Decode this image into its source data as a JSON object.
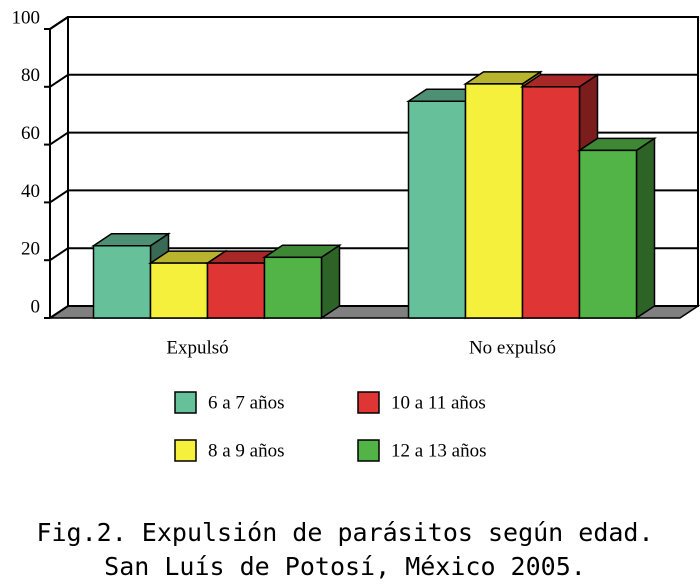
{
  "chart_data": {
    "type": "bar3d",
    "categories": [
      "Expulsó",
      "No expulsó"
    ],
    "series": [
      {
        "name": "6 a 7 años",
        "color": "#66c09a",
        "values": [
          25,
          75
        ]
      },
      {
        "name": "8 a 9 años",
        "color": "#f5f03c",
        "values": [
          19,
          81
        ]
      },
      {
        "name": "10 a 11 años",
        "color": "#e03535",
        "values": [
          19,
          80
        ]
      },
      {
        "name": "12 a 13 años",
        "color": "#52b446",
        "values": [
          21,
          58
        ]
      }
    ],
    "ylim": [
      0,
      100
    ],
    "yticks": [
      0,
      20,
      40,
      60,
      80,
      100
    ],
    "grid": true,
    "caption": [
      "Fig.2. Expulsión de parásitos según edad.",
      "San Luís de Potosí, México 2005."
    ]
  }
}
